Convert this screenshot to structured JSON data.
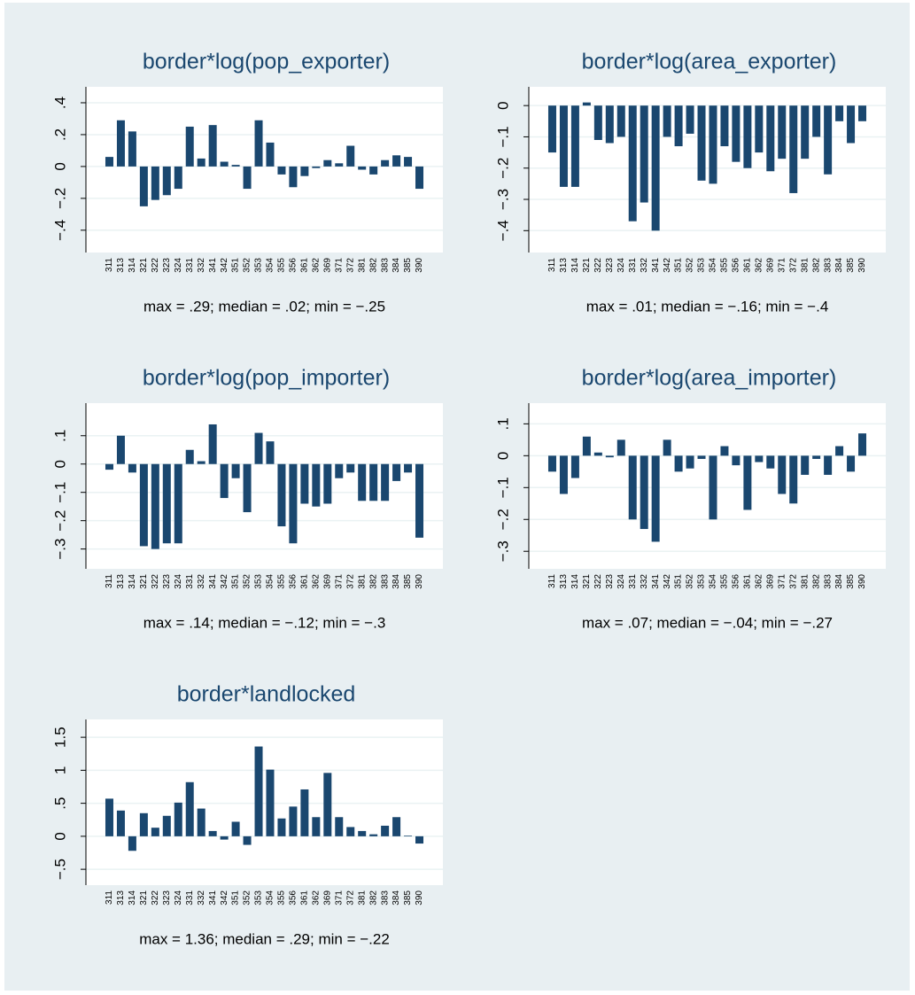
{
  "chart_data": [
    {
      "type": "bar",
      "title": "border*log(pop_exporter)",
      "note": "max = .29; median = .02; min = −.25",
      "color": "#1a476f",
      "grid": true,
      "categories": [
        "311",
        "313",
        "314",
        "321",
        "322",
        "323",
        "324",
        "331",
        "332",
        "341",
        "342",
        "351",
        "352",
        "353",
        "354",
        "355",
        "356",
        "361",
        "362",
        "369",
        "371",
        "372",
        "381",
        "382",
        "383",
        "384",
        "385",
        "390"
      ],
      "values": [
        0.06,
        0.29,
        0.22,
        -0.25,
        -0.21,
        -0.18,
        -0.14,
        0.25,
        0.05,
        0.26,
        0.03,
        0.01,
        -0.14,
        0.29,
        0.15,
        -0.05,
        -0.13,
        -0.06,
        -0.01,
        0.04,
        0.02,
        0.13,
        -0.02,
        -0.05,
        0.04,
        0.07,
        0.06,
        -0.14
      ],
      "ylim": [
        -0.54,
        0.5
      ],
      "yticks": [
        {
          "value": -0.4,
          "label": "−.4"
        },
        {
          "value": -0.2,
          "label": "−.2"
        },
        0,
        {
          "value": 0.2,
          "label": ".2"
        },
        {
          "value": 0.4,
          "label": ".4"
        }
      ]
    },
    {
      "type": "bar",
      "title": "border*log(area_exporter)",
      "note": "max = .01; median = −.16; min = −.4",
      "color": "#1a476f",
      "grid": true,
      "categories": [
        "311",
        "313",
        "314",
        "321",
        "322",
        "323",
        "324",
        "331",
        "332",
        "341",
        "342",
        "351",
        "352",
        "353",
        "354",
        "355",
        "356",
        "361",
        "362",
        "369",
        "371",
        "372",
        "381",
        "382",
        "383",
        "384",
        "385",
        "390"
      ],
      "values": [
        -0.15,
        -0.26,
        -0.26,
        0.01,
        -0.11,
        -0.12,
        -0.1,
        -0.37,
        -0.31,
        -0.4,
        -0.1,
        -0.13,
        -0.09,
        -0.24,
        -0.25,
        -0.13,
        -0.18,
        -0.2,
        -0.15,
        -0.21,
        -0.17,
        -0.28,
        -0.17,
        -0.1,
        -0.22,
        -0.05,
        -0.12,
        -0.05
      ],
      "ylim": [
        -0.47,
        0.06
      ],
      "yticks": [
        {
          "value": -0.4,
          "label": "−.4"
        },
        {
          "value": -0.3,
          "label": "−.3"
        },
        {
          "value": -0.2,
          "label": "−.2"
        },
        {
          "value": -0.1,
          "label": "−.1"
        },
        0
      ]
    },
    {
      "type": "bar",
      "title": "border*log(pop_importer)",
      "note": "max = .14; median = −.12; min = −.3",
      "color": "#1a476f",
      "grid": true,
      "categories": [
        "311",
        "313",
        "314",
        "321",
        "322",
        "323",
        "324",
        "331",
        "332",
        "341",
        "342",
        "351",
        "352",
        "353",
        "354",
        "355",
        "356",
        "361",
        "362",
        "369",
        "371",
        "372",
        "381",
        "382",
        "383",
        "384",
        "385",
        "390"
      ],
      "values": [
        -0.02,
        0.1,
        -0.03,
        -0.29,
        -0.3,
        -0.28,
        -0.28,
        0.05,
        0.01,
        0.14,
        -0.12,
        -0.05,
        -0.17,
        0.11,
        0.08,
        -0.22,
        -0.28,
        -0.14,
        -0.15,
        -0.14,
        -0.05,
        -0.03,
        -0.13,
        -0.13,
        -0.13,
        -0.06,
        -0.03,
        -0.26
      ],
      "ylim": [
        -0.37,
        0.215
      ],
      "yticks": [
        {
          "value": -0.3,
          "label": "−.3"
        },
        {
          "value": -0.2,
          "label": "−.2"
        },
        {
          "value": -0.1,
          "label": "−.1"
        },
        0,
        {
          "value": 0.1,
          "label": ".1"
        }
      ]
    },
    {
      "type": "bar",
      "title": "border*log(area_importer)",
      "note": "max = .07; median = −.04; min = −.27",
      "color": "#1a476f",
      "grid": true,
      "categories": [
        "311",
        "313",
        "314",
        "321",
        "322",
        "323",
        "324",
        "331",
        "332",
        "341",
        "342",
        "351",
        "352",
        "353",
        "354",
        "355",
        "356",
        "361",
        "362",
        "369",
        "371",
        "372",
        "381",
        "382",
        "383",
        "384",
        "385",
        "390"
      ],
      "values": [
        -0.05,
        -0.12,
        -0.07,
        0.06,
        0.01,
        -0.005,
        0.05,
        -0.2,
        -0.23,
        -0.27,
        0.05,
        -0.05,
        -0.04,
        -0.01,
        -0.2,
        0.03,
        -0.03,
        -0.17,
        -0.02,
        -0.04,
        -0.12,
        -0.15,
        -0.06,
        -0.01,
        -0.06,
        0.03,
        -0.05,
        0.07
      ],
      "ylim": [
        -0.355,
        0.165
      ],
      "yticks": [
        {
          "value": -0.3,
          "label": "−.3"
        },
        {
          "value": -0.2,
          "label": "−.2"
        },
        {
          "value": -0.1,
          "label": "−.1"
        },
        0,
        {
          "value": 0.1,
          "label": ".1"
        }
      ]
    },
    {
      "type": "bar",
      "title": "border*landlocked",
      "note": "max = 1.36; median = .29; min = −.22",
      "color": "#1a476f",
      "grid": true,
      "categories": [
        "311",
        "313",
        "314",
        "321",
        "322",
        "323",
        "324",
        "331",
        "332",
        "341",
        "342",
        "351",
        "352",
        "353",
        "354",
        "355",
        "356",
        "361",
        "362",
        "369",
        "371",
        "372",
        "381",
        "382",
        "383",
        "384",
        "385",
        "390"
      ],
      "values": [
        0.57,
        0.39,
        -0.22,
        0.35,
        0.13,
        0.31,
        0.51,
        0.82,
        0.42,
        0.08,
        -0.05,
        0.22,
        -0.13,
        1.36,
        1.01,
        0.27,
        0.45,
        0.71,
        0.29,
        0.96,
        0.29,
        0.14,
        0.08,
        0.03,
        0.16,
        0.29,
        0.01,
        -0.11
      ],
      "ylim": [
        -0.74,
        1.77
      ],
      "yticks": [
        {
          "value": -0.5,
          "label": "−.5"
        },
        0,
        {
          "value": 0.5,
          "label": ".5"
        },
        1,
        {
          "value": 1.5,
          "label": "1.5"
        }
      ]
    }
  ]
}
